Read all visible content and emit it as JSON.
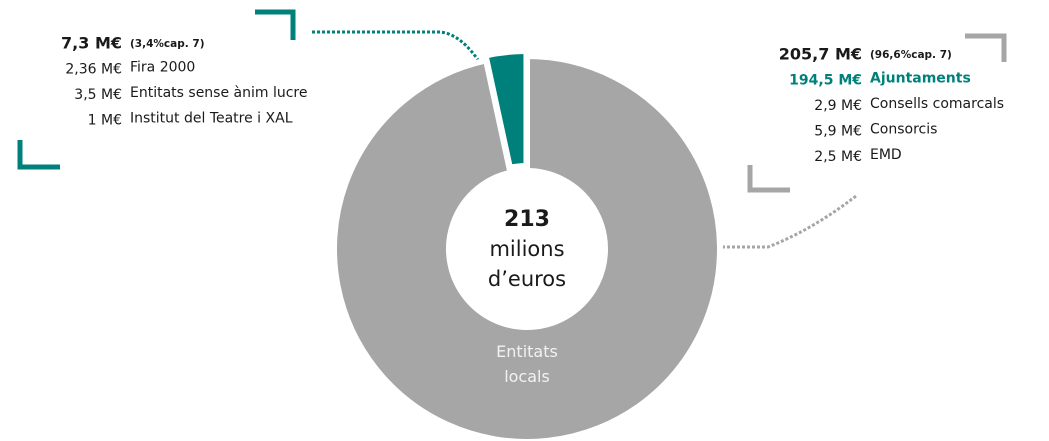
{
  "chart_data": {
    "type": "pie",
    "donut": true,
    "categories": [
      "Entitats locals",
      null
    ],
    "values": [
      96.6,
      3.4
    ],
    "colors": [
      "#a6a6a6",
      "#00807a"
    ],
    "center_label": [
      "213",
      "milions",
      "d’euros"
    ],
    "annotations": [
      {
        "total": "7,3 M€",
        "share": "(3,4%cap. 7)",
        "items": [
          {
            "value": "2,36 M€",
            "label": "Fira 2000"
          },
          {
            "value": "3,5 M€",
            "label": "Entitats sense ànim lucre"
          },
          {
            "value": "1 M€",
            "label": "Institut del Teatre i XAL"
          }
        ]
      },
      {
        "total": "205,7 M€",
        "share": "(96,6%cap. 7)",
        "items": [
          {
            "value": "194,5 M€",
            "label": "Ajuntaments"
          },
          {
            "value": "2,9 M€",
            "label": "Consells comarcals"
          },
          {
            "value": "5,9 M€",
            "label": "Consorcis"
          },
          {
            "value": "2,5 M€",
            "label": "EMD"
          }
        ]
      }
    ]
  }
}
